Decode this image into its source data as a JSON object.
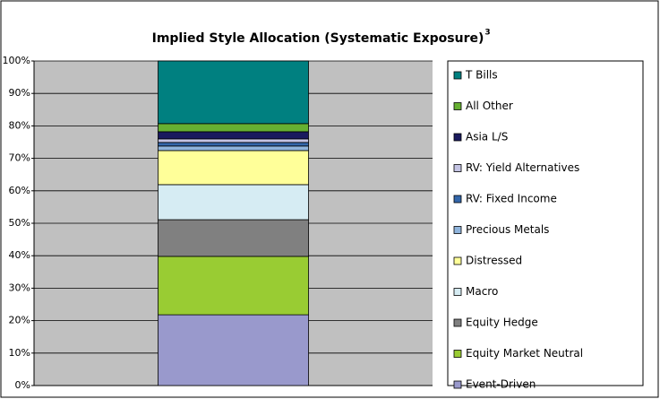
{
  "chart_data": {
    "type": "stacked_bar",
    "title": "Implied Style Allocation (Systematic Exposure)",
    "title_note": "3",
    "categories": [
      null
    ],
    "series": [
      {
        "name": "Event-Driven",
        "color": "#9999cc",
        "values": [
          21.8
        ]
      },
      {
        "name": "Equity Market Neutral",
        "color": "#99cc33",
        "values": [
          18.0
        ]
      },
      {
        "name": "Equity Hedge",
        "color": "#808080",
        "values": [
          11.3
        ]
      },
      {
        "name": "Macro",
        "color": "#d6ecf3",
        "values": [
          10.8
        ]
      },
      {
        "name": "Distressed",
        "color": "#ffff99",
        "values": [
          10.5
        ]
      },
      {
        "name": "Precious Metals",
        "color": "#8fb4dc",
        "values": [
          1.4
        ]
      },
      {
        "name": "RV: Fixed Income",
        "color": "#3366aa",
        "values": [
          1.1
        ]
      },
      {
        "name": "RV: Yield Alternatives",
        "color": "#c4c4e4",
        "values": [
          1.1
        ]
      },
      {
        "name": "Asia L/S",
        "color": "#1a1a5e",
        "values": [
          2.2
        ]
      },
      {
        "name": "All Other",
        "color": "#66b032",
        "values": [
          2.5
        ]
      },
      {
        "name": "T Bills",
        "color": "#008080",
        "values": [
          19.3
        ]
      }
    ],
    "ylim": [
      0,
      100
    ],
    "yticks": [
      {
        "value": 0,
        "label": "0%"
      },
      {
        "value": 10,
        "label": "10%"
      },
      {
        "value": 20,
        "label": "20%"
      },
      {
        "value": 30,
        "label": "30%"
      },
      {
        "value": 40,
        "label": "40%"
      },
      {
        "value": 50,
        "label": "50%"
      },
      {
        "value": 60,
        "label": "60%"
      },
      {
        "value": 70,
        "label": "70%"
      },
      {
        "value": 80,
        "label": "80%"
      },
      {
        "value": 90,
        "label": "90%"
      },
      {
        "value": 100,
        "label": "100%"
      }
    ],
    "grid": true,
    "legend": "right"
  }
}
